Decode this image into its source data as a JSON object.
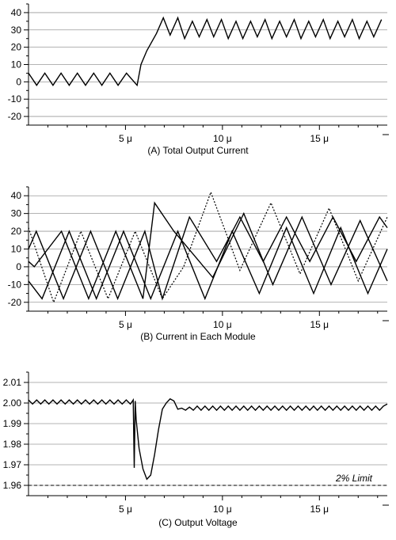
{
  "chart_data": [
    {
      "type": "line",
      "caption": "(A) Total Output Current",
      "ylim": [
        -25,
        45
      ],
      "yticks": [
        -20,
        -10,
        0,
        10,
        20,
        30,
        40
      ],
      "yticklabels": [
        "-20",
        "-10",
        "0",
        "10",
        "20",
        "30",
        "40"
      ],
      "xlim": [
        0,
        18.5
      ],
      "xticks": [
        5,
        10,
        15
      ],
      "xticklabels": [
        "5 μ",
        "10 μ",
        "15 μ"
      ],
      "grid": "horizontal",
      "series": [
        {
          "style": "solid",
          "x": [
            0,
            0.42,
            0.84,
            1.26,
            1.68,
            2.1,
            2.52,
            2.94,
            3.36,
            3.78,
            4.2,
            4.62,
            5.05,
            5.6,
            5.8,
            6.1,
            6.6,
            6.95,
            7.3,
            7.7,
            8.05,
            8.45,
            8.8,
            9.2,
            9.55,
            9.95,
            10.3,
            10.7,
            11.05,
            11.45,
            11.8,
            12.2,
            12.55,
            12.95,
            13.3,
            13.7,
            14.05,
            14.45,
            14.8,
            15.2,
            15.55,
            15.95,
            16.3,
            16.7,
            17.05,
            17.45,
            17.8,
            18.2
          ],
          "y": [
            5,
            -2,
            5,
            -2,
            5,
            -2,
            5,
            -2,
            5,
            -2,
            5,
            -2,
            5,
            -2,
            10,
            18,
            28,
            37,
            27,
            37,
            25,
            35,
            26,
            36,
            26,
            36,
            25,
            35,
            25,
            35,
            26,
            36,
            25,
            35,
            26,
            36,
            25,
            35,
            26,
            36,
            25,
            35,
            26,
            36,
            25,
            35,
            26,
            36
          ]
        }
      ]
    },
    {
      "type": "line",
      "caption": "(B) Current in Each Module",
      "ylim": [
        -25,
        45
      ],
      "yticks": [
        -20,
        -10,
        0,
        10,
        20,
        30,
        40
      ],
      "yticklabels": [
        "-20",
        "-10",
        "0",
        "10",
        "20",
        "30",
        "40"
      ],
      "xlim": [
        0,
        18.5
      ],
      "xticks": [
        5,
        10,
        15
      ],
      "xticklabels": [
        "5 μ",
        "10 μ",
        "15 μ"
      ],
      "grid": "horizontal",
      "series": [
        {
          "style": "solid",
          "x": [
            0,
            0.7,
            2.1,
            3.5,
            4.9,
            6.3,
            7.7,
            9.1,
            10.5,
            11.9,
            13.3,
            14.7,
            16.1,
            17.5,
            18.5
          ],
          "y": [
            -8,
            -18,
            20,
            -18,
            20,
            -18,
            20,
            -18,
            20,
            -15,
            22,
            -15,
            22,
            -15,
            10
          ]
        },
        {
          "style": "solid",
          "x": [
            0,
            0.3,
            1.7,
            3.1,
            4.5,
            5.9,
            6.5,
            7.5,
            9.5,
            11.1,
            12.6,
            14.1,
            15.6,
            17.1,
            18.5
          ],
          "y": [
            3,
            0,
            20,
            -18,
            20,
            -18,
            36,
            20,
            -6,
            30,
            -10,
            28,
            -10,
            26,
            -8
          ]
        },
        {
          "style": "solid",
          "x": [
            0,
            0.4,
            1.8,
            3.2,
            4.6,
            6.0,
            6.9,
            8.3,
            9.7,
            10.9,
            12.1,
            13.3,
            14.5,
            15.7,
            16.9,
            18.1,
            18.5
          ],
          "y": [
            10,
            20,
            -18,
            20,
            -18,
            20,
            -18,
            28,
            3,
            28,
            3,
            28,
            3,
            28,
            3,
            28,
            22
          ]
        },
        {
          "style": "dotted",
          "x": [
            0,
            1.3,
            2.7,
            4.1,
            5.5,
            6.9,
            8.0,
            9.4,
            10.9,
            12.5,
            14.0,
            15.5,
            17.0,
            18.5
          ],
          "y": [
            22,
            -20,
            20,
            -18,
            20,
            -18,
            0,
            42,
            -2,
            36,
            -4,
            33,
            -8,
            28
          ]
        }
      ]
    },
    {
      "type": "line",
      "caption": "(C) Output Voltage",
      "ylim": [
        1.955,
        2.015
      ],
      "yticks": [
        1.96,
        1.97,
        1.98,
        1.99,
        2.0,
        2.01
      ],
      "yticklabels": [
        "1.96",
        "1.97",
        "1.98",
        "1.99",
        "2.00",
        "2.01"
      ],
      "xlim": [
        0,
        18.5
      ],
      "xticks": [
        5,
        10,
        15
      ],
      "xticklabels": [
        "5 μ",
        "10 μ",
        "15 μ"
      ],
      "grid": "horizontal",
      "annotation": "2% Limit",
      "limit_line": 1.96,
      "series": [
        {
          "style": "solid",
          "x": [
            0,
            0.21,
            0.42,
            0.63,
            0.84,
            1.05,
            1.26,
            1.47,
            1.68,
            1.89,
            2.1,
            2.31,
            2.52,
            2.73,
            2.94,
            3.15,
            3.36,
            3.57,
            3.78,
            3.99,
            4.2,
            4.41,
            4.62,
            4.83,
            5.04,
            5.25,
            5.4,
            5.45,
            5.5,
            5.55,
            5.7,
            5.9,
            6.1,
            6.3,
            6.5,
            6.7,
            6.9,
            7.1,
            7.3,
            7.5,
            7.7,
            7.9,
            8.1,
            8.3,
            8.5,
            8.7,
            8.9,
            9.1,
            9.3,
            9.5,
            9.7,
            9.9,
            10.1,
            10.3,
            10.5,
            10.7,
            10.9,
            11.1,
            11.3,
            11.5,
            11.7,
            11.9,
            12.1,
            12.3,
            12.5,
            12.7,
            12.9,
            13.1,
            13.3,
            13.5,
            13.7,
            13.9,
            14.1,
            14.3,
            14.5,
            14.7,
            14.9,
            15.1,
            15.3,
            15.5,
            15.7,
            15.9,
            16.1,
            16.3,
            16.5,
            16.7,
            16.9,
            17.1,
            17.3,
            17.5,
            17.7,
            17.9,
            18.1,
            18.3,
            18.5
          ],
          "y": [
            2.0015,
            1.9995,
            2.0015,
            1.9995,
            2.0015,
            1.9995,
            2.0015,
            1.9995,
            2.0015,
            1.9995,
            2.0015,
            1.9995,
            2.0015,
            1.9995,
            2.0015,
            1.9995,
            2.0015,
            1.9995,
            2.0015,
            1.9995,
            2.0015,
            1.9995,
            2.0015,
            1.9995,
            2.0015,
            1.9995,
            2.0015,
            1.9685,
            2.001,
            1.992,
            1.978,
            1.968,
            1.963,
            1.965,
            1.975,
            1.987,
            1.997,
            2.0,
            2.002,
            2.001,
            1.997,
            1.9975,
            1.9965,
            1.998,
            1.9965,
            1.9985,
            1.9965,
            1.9985,
            1.9965,
            1.9985,
            1.9965,
            1.9985,
            1.9965,
            1.9985,
            1.9965,
            1.9985,
            1.9965,
            1.9985,
            1.9965,
            1.9985,
            1.9965,
            1.9985,
            1.9965,
            1.9985,
            1.9965,
            1.9985,
            1.9965,
            1.9985,
            1.9965,
            1.9985,
            1.9965,
            1.9985,
            1.9965,
            1.9985,
            1.9965,
            1.9985,
            1.9965,
            1.9985,
            1.9965,
            1.9985,
            1.9965,
            1.9985,
            1.9965,
            1.9985,
            1.9965,
            1.9985,
            1.9965,
            1.9985,
            1.9965,
            1.9985,
            1.9965,
            1.9985,
            1.9965,
            1.9985,
            1.9995
          ]
        }
      ]
    }
  ]
}
